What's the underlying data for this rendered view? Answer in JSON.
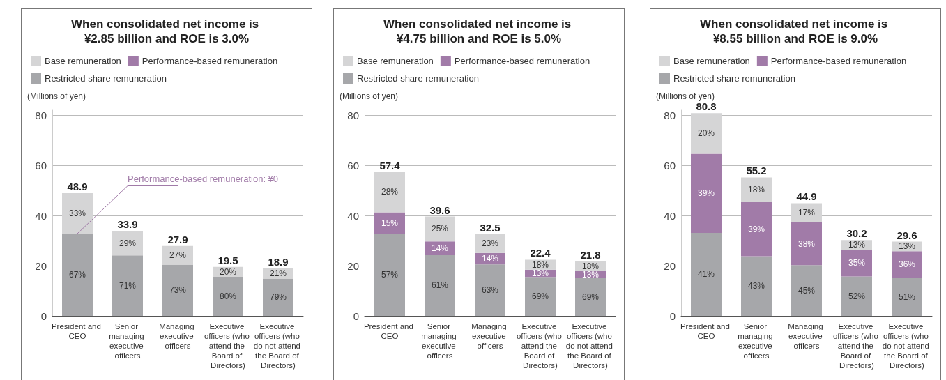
{
  "chart_data": [
    {
      "type": "bar",
      "stacked": true,
      "title": "When consolidated net income is ¥2.85 billion and ROE is 3.0%",
      "ylabel": "(Millions of yen)",
      "categories": [
        "President and CEO",
        "Senior managing executive officers",
        "Managing executive officers",
        "Executive officers (who attend the Board of Directors)",
        "Executive officers (who do not attend the Board of Directors)"
      ],
      "series": [
        {
          "name": "Restricted share remuneration",
          "color": "#a6a7aa",
          "values": [
            32.8,
            24.1,
            20.4,
            15.6,
            14.9
          ]
        },
        {
          "name": "Performance-based remuneration",
          "color": "#a17ba8",
          "values": [
            0,
            0,
            0,
            0,
            0
          ]
        },
        {
          "name": "Base remuneration",
          "color": "#d5d5d6",
          "values": [
            16.1,
            9.8,
            7.5,
            3.9,
            4.0
          ]
        }
      ],
      "totals": [
        "48.9",
        "33.9",
        "27.9",
        "19.5",
        "18.9"
      ],
      "annotations": [
        {
          "text": "Performance-based remuneration: ¥0",
          "x": "President and CEO",
          "y": 32.8
        },
        "67%",
        "71%",
        "73%",
        "80%",
        "79%",
        "33%",
        "29%",
        "27%",
        "20%",
        "21%"
      ],
      "ylim": [
        0,
        82
      ],
      "yticks": [
        0,
        20,
        40,
        60,
        80
      ],
      "grid": "y",
      "legend": "top left"
    },
    {
      "type": "bar",
      "stacked": true,
      "title": "When consolidated net income is ¥4.75 billion and ROE is 5.0%",
      "ylabel": "(Millions of yen)",
      "categories": [
        "President and CEO",
        "Senior managing executive officers",
        "Managing executive officers",
        "Executive officers (who attend the Board of Directors)",
        "Executive officers (who do not attend the Board of Directors)"
      ],
      "series": [
        {
          "name": "Restricted share remuneration",
          "color": "#a6a7aa",
          "values": [
            32.7,
            24.2,
            20.5,
            15.5,
            15.0
          ]
        },
        {
          "name": "Performance-based remuneration",
          "color": "#a17ba8",
          "values": [
            8.6,
            5.5,
            4.6,
            2.9,
            2.8
          ]
        },
        {
          "name": "Base remuneration",
          "color": "#d5d5d6",
          "values": [
            16.1,
            9.9,
            7.4,
            4.0,
            4.0
          ]
        }
      ],
      "totals": [
        "57.4",
        "39.6",
        "32.5",
        "22.4",
        "21.8"
      ],
      "annotations": [
        "57%",
        "61%",
        "63%",
        "69%",
        "69%",
        "15%",
        "14%",
        "14%",
        "13%",
        "13%",
        "28%",
        "25%",
        "23%",
        "18%",
        "18%"
      ],
      "ylim": [
        0,
        82
      ],
      "yticks": [
        0,
        20,
        40,
        60,
        80
      ],
      "grid": "y",
      "legend": "top left"
    },
    {
      "type": "bar",
      "stacked": true,
      "title": "When consolidated net income is ¥8.55 billion and ROE is 9.0%",
      "ylabel": "(Millions of yen)",
      "categories": [
        "President and CEO",
        "Senior managing executive officers",
        "Managing executive officers",
        "Executive officers (who attend the Board of Directors)",
        "Executive officers (who do not attend the Board of Directors)"
      ],
      "series": [
        {
          "name": "Restricted share remuneration",
          "color": "#a6a7aa",
          "values": [
            33.1,
            23.8,
            20.2,
            15.7,
            15.1
          ]
        },
        {
          "name": "Performance-based remuneration",
          "color": "#a17ba8",
          "values": [
            31.5,
            21.5,
            17.1,
            10.6,
            10.7
          ]
        },
        {
          "name": "Base remuneration",
          "color": "#d5d5d6",
          "values": [
            16.2,
            9.9,
            7.6,
            3.9,
            3.8
          ]
        }
      ],
      "totals": [
        "80.8",
        "55.2",
        "44.9",
        "30.2",
        "29.6"
      ],
      "annotations": [
        "41%",
        "43%",
        "45%",
        "52%",
        "51%",
        "39%",
        "39%",
        "38%",
        "35%",
        "36%",
        "20%",
        "18%",
        "17%",
        "13%",
        "13%"
      ],
      "ylim": [
        0,
        82
      ],
      "yticks": [
        0,
        20,
        40,
        60,
        80
      ],
      "grid": "y",
      "legend": "top left"
    }
  ]
}
